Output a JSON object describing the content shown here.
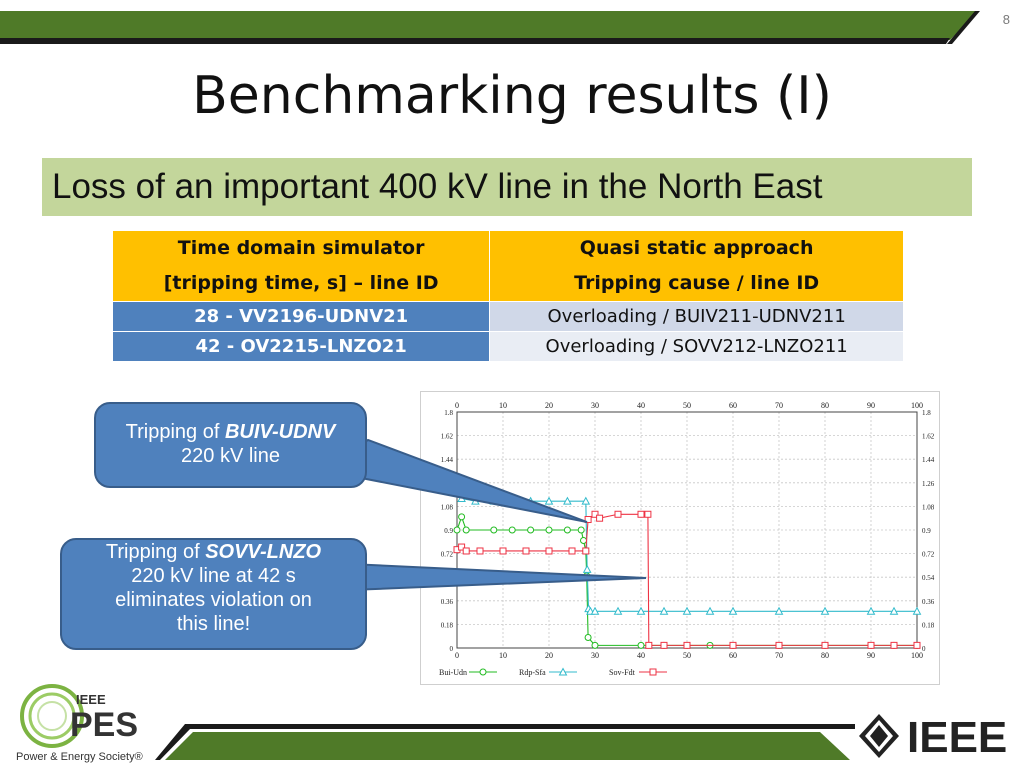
{
  "page_number": "8",
  "title": "Benchmarking results (I)",
  "subtitle": "Loss of an important 400 kV line in the North East",
  "table": {
    "headers": [
      [
        "Time domain simulator",
        "[tripping time, s] – line ID"
      ],
      [
        "Quasi static approach",
        "Tripping cause / line ID"
      ]
    ],
    "rows": [
      [
        "28 - VV2196-UDNV21",
        "Overloading / BUIV211-UDNV211"
      ],
      [
        "42 - OV2215-LNZO21",
        "Overloading / SOVV212-LNZO211"
      ]
    ]
  },
  "callouts": {
    "first": {
      "prefix": "Tripping of ",
      "emph": "BUIV-UDNV",
      "rest": "220 kV line"
    },
    "second": {
      "prefix": "Tripping of ",
      "emph": "SOVV-LNZO",
      "rest": [
        "220 kV line at 42 s",
        "eliminates violation on",
        "this line!"
      ]
    }
  },
  "chart_data": {
    "type": "line",
    "title": "",
    "xlabel": "",
    "ylabel": "",
    "xlim": [
      0,
      100
    ],
    "ylim": [
      0,
      1.8
    ],
    "x_ticks": [
      "0",
      "10",
      "20",
      "30",
      "40",
      "50",
      "60",
      "70",
      "80",
      "90",
      "100"
    ],
    "y_ticks_left": [
      "0",
      "0.18",
      "0.36",
      "0.54",
      "0.72",
      "0.9",
      "1.08",
      "1.26",
      "1.44",
      "1.62",
      "1.8"
    ],
    "y_ticks_right": [
      "0",
      "0.18",
      "0.36",
      "0.54",
      "0.72",
      "0.9",
      "1.08",
      "1.26",
      "1.44",
      "1.62",
      "1.8"
    ],
    "grid": true,
    "legend": "bottom-left",
    "series": [
      {
        "name": "Bui-Udn",
        "color": "#22bb22",
        "marker": "circle",
        "x": [
          0,
          1,
          2,
          8,
          12,
          16,
          20,
          24,
          27,
          27.5,
          28,
          28.2,
          28.5,
          30,
          40,
          45,
          50,
          55,
          60,
          70,
          80,
          90,
          95,
          100
        ],
        "y": [
          0.9,
          1.0,
          0.9,
          0.9,
          0.9,
          0.9,
          0.9,
          0.9,
          0.9,
          0.82,
          0.74,
          0.55,
          0.08,
          0.02,
          0.02,
          0.02,
          0.02,
          0.02,
          0.02,
          0.02,
          0.02,
          0.02,
          0.02,
          0.02
        ]
      },
      {
        "name": "Rdp-Sfa",
        "color": "#33bbcc",
        "marker": "triangle",
        "x": [
          0,
          1,
          4,
          8,
          12,
          16,
          20,
          24,
          28,
          28.3,
          28.6,
          29,
          30,
          35,
          40,
          45,
          50,
          55,
          60,
          70,
          80,
          90,
          95,
          100
        ],
        "y": [
          1.2,
          1.14,
          1.12,
          1.12,
          1.12,
          1.12,
          1.12,
          1.12,
          1.12,
          0.6,
          0.3,
          0.28,
          0.28,
          0.28,
          0.28,
          0.28,
          0.28,
          0.28,
          0.28,
          0.28,
          0.28,
          0.28,
          0.28,
          0.28
        ]
      },
      {
        "name": "Sov-Fdt",
        "color": "#ee3344",
        "marker": "square",
        "x": [
          0,
          1,
          2,
          5,
          10,
          15,
          20,
          25,
          28,
          28.5,
          30,
          31,
          35,
          40,
          41.5,
          41.7,
          45,
          50,
          60,
          70,
          80,
          90,
          95,
          100
        ],
        "y": [
          0.75,
          0.77,
          0.74,
          0.74,
          0.74,
          0.74,
          0.74,
          0.74,
          0.74,
          0.98,
          1.02,
          0.99,
          1.02,
          1.02,
          1.02,
          0.02,
          0.02,
          0.02,
          0.02,
          0.02,
          0.02,
          0.02,
          0.02,
          0.02
        ]
      }
    ]
  }
}
